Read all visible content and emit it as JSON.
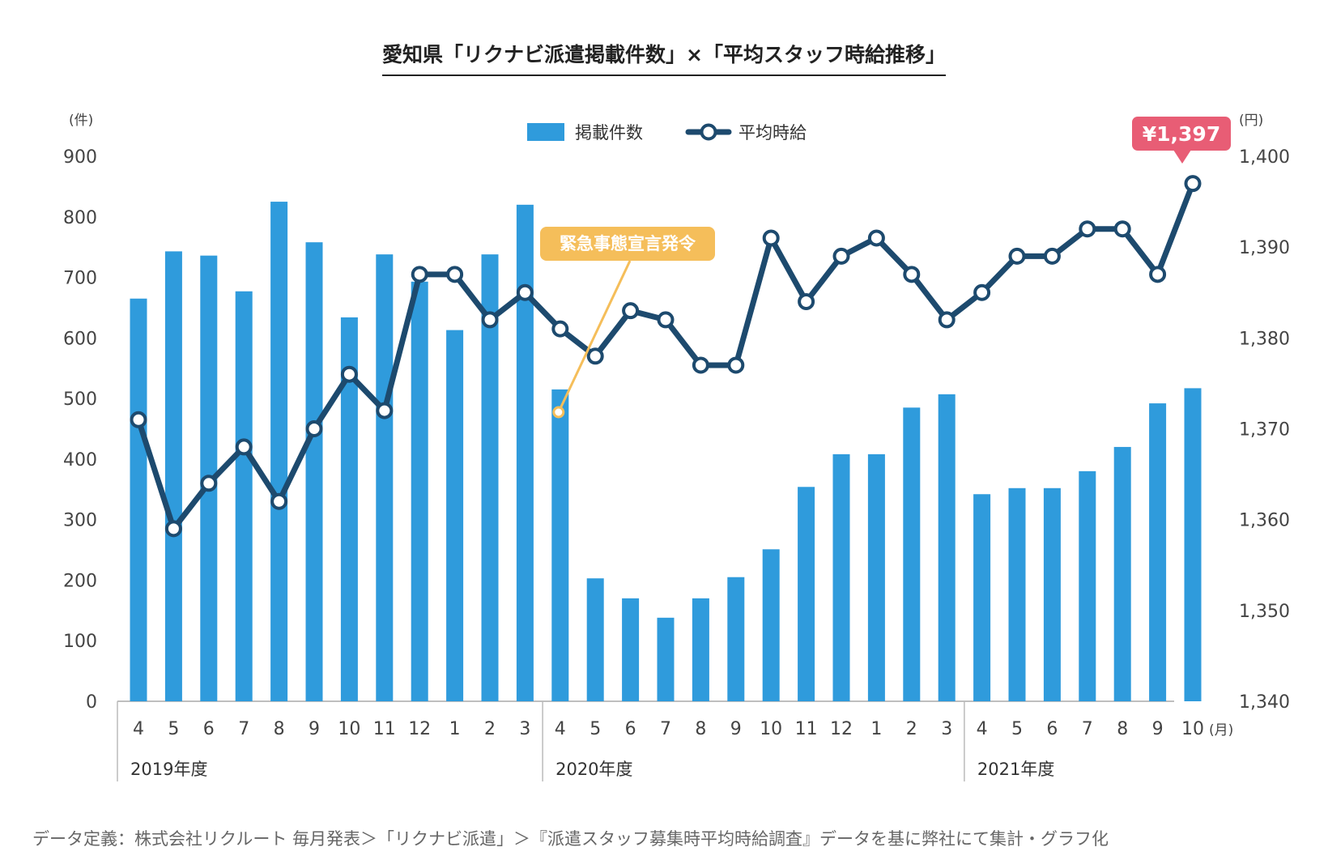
{
  "title": "愛知県「リクナビ派遣掲載件数」×「平均スタッフ時給推移」",
  "footnote": "データ定義：株式会社リクルート 毎月発表＞「リクナビ派遣」＞『派遣スタッフ募集時平均時給調査』データを基に弊社にて集計・グラフ化",
  "chart_data": {
    "type": "bar+line",
    "categories": [
      "4",
      "5",
      "6",
      "7",
      "8",
      "9",
      "10",
      "11",
      "12",
      "1",
      "2",
      "3",
      "4",
      "5",
      "6",
      "7",
      "8",
      "9",
      "10",
      "11",
      "12",
      "1",
      "2",
      "3",
      "4",
      "5",
      "6",
      "7",
      "8",
      "9",
      "10"
    ],
    "x_unit": "(月)",
    "fiscal_years": [
      {
        "label": "2019年度",
        "start_index": 0,
        "end_index": 11
      },
      {
        "label": "2020年度",
        "start_index": 12,
        "end_index": 23
      },
      {
        "label": "2021年度",
        "start_index": 24,
        "end_index": 30
      }
    ],
    "series": [
      {
        "name": "掲載件数",
        "kind": "bar",
        "axis": "left",
        "color": "#2f9bdc",
        "values": [
          665,
          743,
          736,
          677,
          825,
          758,
          634,
          738,
          693,
          613,
          738,
          820,
          515,
          203,
          170,
          138,
          170,
          205,
          251,
          354,
          408,
          408,
          485,
          507,
          342,
          352,
          352,
          380,
          420,
          492,
          517
        ]
      },
      {
        "name": "平均時給",
        "kind": "line",
        "axis": "right",
        "color": "#1d4a6e",
        "values": [
          1371,
          1359,
          1364,
          1368,
          1362,
          1370,
          1376,
          1372,
          1387,
          1387,
          1382,
          1385,
          1381,
          1378,
          1383,
          1382,
          1377,
          1377,
          1391,
          1384,
          1389,
          1391,
          1387,
          1382,
          1385,
          1389,
          1389,
          1392,
          1392,
          1387,
          1397
        ]
      }
    ],
    "y_left": {
      "unit": "(件)",
      "min": 0,
      "max": 900,
      "ticks": [
        "0",
        "100",
        "200",
        "300",
        "400",
        "500",
        "600",
        "700",
        "800",
        "900"
      ]
    },
    "y_right": {
      "unit": "(円)",
      "min": 1340,
      "max": 1400,
      "ticks": [
        "1,340",
        "1,350",
        "1,360",
        "1,370",
        "1,380",
        "1,390",
        "1,400"
      ]
    },
    "legend": {
      "placement": "top-center",
      "items": [
        "掲載件数",
        "平均時給"
      ]
    },
    "annotations": [
      {
        "text": "緊急事態宣言発令",
        "color": "#f5be5a",
        "target_index": 12
      },
      {
        "text": "¥1,397",
        "color": "#e85d75",
        "target_index": 30
      }
    ],
    "grid": false
  }
}
